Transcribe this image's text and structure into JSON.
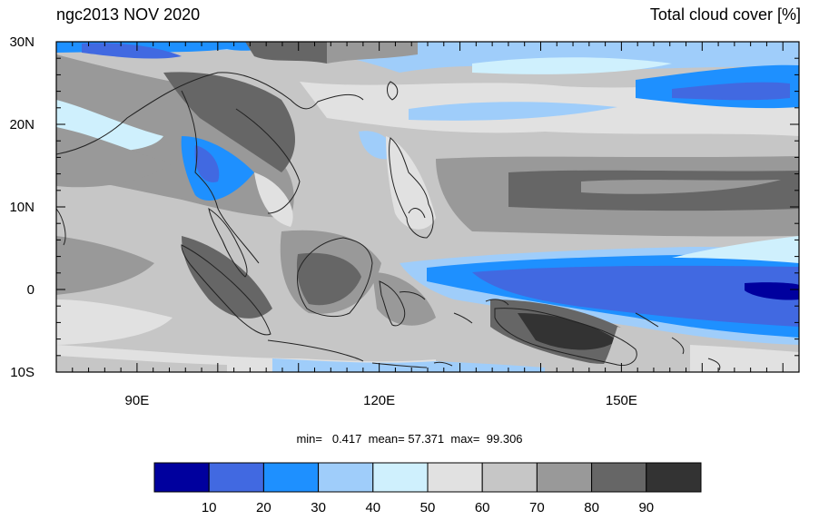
{
  "title": {
    "left": "ngc2013 NOV 2020",
    "right": "Total cloud cover [%]"
  },
  "map": {
    "lon_range": [
      80,
      172
    ],
    "lat_range": [
      -10,
      30
    ],
    "lat_ticks": [
      {
        "value": 30,
        "label": "30N"
      },
      {
        "value": 20,
        "label": "20N"
      },
      {
        "value": 10,
        "label": "10N"
      },
      {
        "value": 0,
        "label": "0"
      },
      {
        "value": -10,
        "label": "10S"
      }
    ],
    "lon_ticks": [
      {
        "value": 90,
        "label": "90E"
      },
      {
        "value": 120,
        "label": "120E"
      },
      {
        "value": 150,
        "label": "150E"
      }
    ]
  },
  "stats": {
    "min_label": "min=",
    "min_value": "0.417",
    "mean_label": "mean=",
    "mean_value": "57.371",
    "max_label": "max=",
    "max_value": "99.306"
  },
  "colorbar": {
    "colors": [
      "#00009e",
      "#4169e1",
      "#1e90ff",
      "#9fcdfa",
      "#cff0fd",
      "#e1e1e1",
      "#c6c6c6",
      "#999999",
      "#666666",
      "#333333"
    ],
    "labels": [
      "10",
      "20",
      "30",
      "40",
      "50",
      "60",
      "70",
      "80",
      "90"
    ]
  }
}
